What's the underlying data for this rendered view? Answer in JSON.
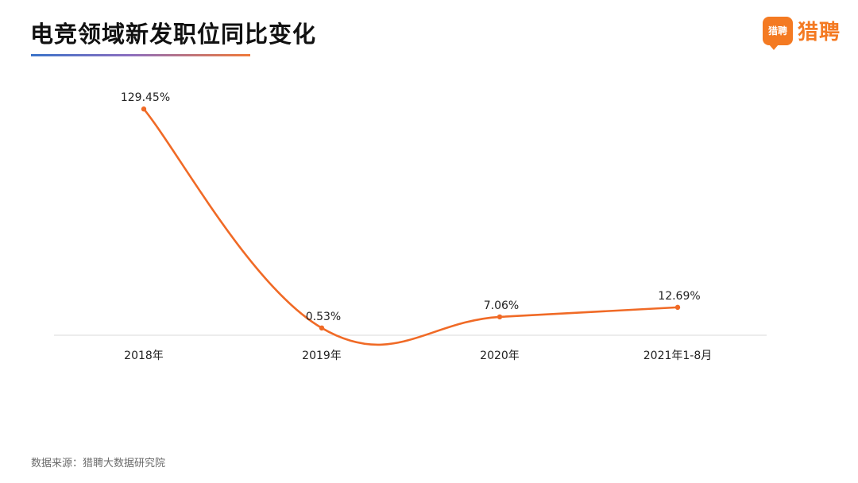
{
  "header": {
    "title": "电竞领域新发职位同比变化"
  },
  "logo": {
    "badge_text": "猎聘",
    "brand_text": "猎聘",
    "brand_color": "#f47a22"
  },
  "footer": {
    "source": "数据来源：猎聘大数据研究院"
  },
  "chart_data": {
    "type": "line",
    "title": "电竞领域新发职位同比变化",
    "categories": [
      "2018年",
      "2019年",
      "2020年",
      "2021年1-8月"
    ],
    "series": [
      {
        "values": [
          129.45,
          0.53,
          7.06,
          12.69
        ],
        "labels": [
          "129.45%",
          "0.53%",
          "7.06%",
          "12.69%"
        ],
        "color": "#f06a26"
      }
    ],
    "xlabel": "",
    "ylabel": "",
    "smooth": true,
    "grid": false,
    "legend": "none"
  }
}
